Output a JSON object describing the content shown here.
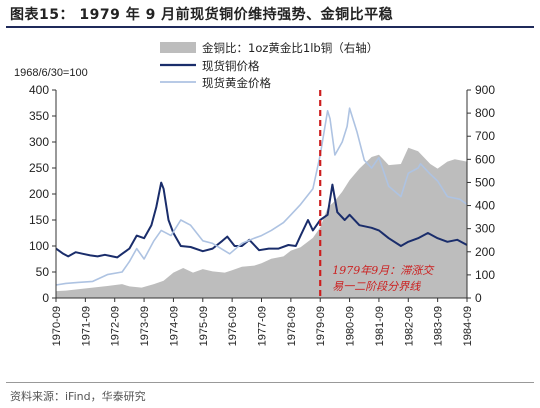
{
  "header": {
    "title": "图表15：  1979 年 9 月前现货铜价维持强势、金铜比平稳"
  },
  "footer": {
    "source": "资料来源：iFind，华泰研究"
  },
  "chart_data": {
    "type": "line",
    "base_label": "1968/6/30=100",
    "x_ticks": [
      "1970-09",
      "1971-09",
      "1972-09",
      "1973-09",
      "1974-09",
      "1975-09",
      "1976-09",
      "1977-09",
      "1978-09",
      "1979-09",
      "1980-09",
      "1981-09",
      "1982-09",
      "1983-09",
      "1984-09"
    ],
    "x_range": [
      "1970-09",
      "1984-09"
    ],
    "left_axis": {
      "range": [
        0,
        400
      ],
      "ticks": [
        0,
        50,
        100,
        150,
        200,
        250,
        300,
        350,
        400
      ]
    },
    "right_axis": {
      "range": [
        0,
        900
      ],
      "ticks": [
        0,
        100,
        200,
        300,
        400,
        500,
        600,
        700,
        800,
        900
      ]
    },
    "grid": false,
    "legend_position": "top",
    "annotation": {
      "x": "1979-09",
      "lines": [
        "1979年9月：滞涨交",
        "易一二阶段分界线"
      ],
      "color": "#cc1f1f"
    },
    "series": [
      {
        "name": "金铜比：1oz黄金比1lb铜（右轴）",
        "axis": "right",
        "style": "area",
        "color": "#bdbdbd",
        "points": [
          [
            "1970-09",
            30
          ],
          [
            "1971-01",
            32
          ],
          [
            "1971-06",
            38
          ],
          [
            "1971-12",
            45
          ],
          [
            "1972-06",
            52
          ],
          [
            "1972-12",
            60
          ],
          [
            "1973-03",
            50
          ],
          [
            "1973-08",
            45
          ],
          [
            "1974-01",
            60
          ],
          [
            "1974-05",
            75
          ],
          [
            "1974-09",
            110
          ],
          [
            "1975-01",
            130
          ],
          [
            "1975-05",
            110
          ],
          [
            "1975-09",
            125
          ],
          [
            "1976-01",
            115
          ],
          [
            "1976-06",
            110
          ],
          [
            "1976-09",
            120
          ],
          [
            "1977-01",
            135
          ],
          [
            "1977-06",
            140
          ],
          [
            "1977-09",
            150
          ],
          [
            "1978-01",
            170
          ],
          [
            "1978-06",
            180
          ],
          [
            "1978-09",
            205
          ],
          [
            "1979-01",
            220
          ],
          [
            "1979-06",
            260
          ],
          [
            "1979-09",
            305
          ],
          [
            "1979-12",
            390
          ],
          [
            "1980-03",
            420
          ],
          [
            "1980-06",
            460
          ],
          [
            "1980-09",
            510
          ],
          [
            "1981-01",
            560
          ],
          [
            "1981-06",
            610
          ],
          [
            "1981-09",
            620
          ],
          [
            "1982-01",
            575
          ],
          [
            "1982-06",
            580
          ],
          [
            "1982-09",
            650
          ],
          [
            "1983-01",
            635
          ],
          [
            "1983-06",
            580
          ],
          [
            "1983-09",
            560
          ],
          [
            "1984-01",
            590
          ],
          [
            "1984-04",
            600
          ],
          [
            "1984-09",
            590
          ]
        ]
      },
      {
        "name": "现货铜价格",
        "axis": "left",
        "style": "line",
        "color": "#1a2d6b",
        "points": [
          [
            "1970-09",
            95
          ],
          [
            "1970-12",
            85
          ],
          [
            "1971-02",
            80
          ],
          [
            "1971-05",
            88
          ],
          [
            "1971-08",
            85
          ],
          [
            "1971-11",
            82
          ],
          [
            "1972-02",
            80
          ],
          [
            "1972-05",
            83
          ],
          [
            "1972-08",
            80
          ],
          [
            "1972-10",
            78
          ],
          [
            "1972-12",
            85
          ],
          [
            "1973-03",
            95
          ],
          [
            "1973-06",
            120
          ],
          [
            "1973-09",
            115
          ],
          [
            "1973-12",
            140
          ],
          [
            "1974-02",
            175
          ],
          [
            "1974-04",
            222
          ],
          [
            "1974-05",
            210
          ],
          [
            "1974-07",
            150
          ],
          [
            "1974-09",
            125
          ],
          [
            "1974-12",
            100
          ],
          [
            "1975-04",
            98
          ],
          [
            "1975-09",
            90
          ],
          [
            "1976-01",
            95
          ],
          [
            "1976-05",
            110
          ],
          [
            "1976-07",
            118
          ],
          [
            "1976-10",
            100
          ],
          [
            "1977-01",
            100
          ],
          [
            "1977-04",
            112
          ],
          [
            "1977-08",
            92
          ],
          [
            "1977-12",
            95
          ],
          [
            "1978-04",
            95
          ],
          [
            "1978-08",
            102
          ],
          [
            "1978-11",
            100
          ],
          [
            "1979-01",
            120
          ],
          [
            "1979-04",
            150
          ],
          [
            "1979-06",
            130
          ],
          [
            "1979-09",
            150
          ],
          [
            "1979-12",
            160
          ],
          [
            "1980-02",
            218
          ],
          [
            "1980-04",
            165
          ],
          [
            "1980-07",
            150
          ],
          [
            "1980-09",
            160
          ],
          [
            "1981-01",
            140
          ],
          [
            "1981-06",
            135
          ],
          [
            "1981-09",
            130
          ],
          [
            "1982-01",
            115
          ],
          [
            "1982-06",
            100
          ],
          [
            "1982-09",
            108
          ],
          [
            "1983-01",
            115
          ],
          [
            "1983-05",
            125
          ],
          [
            "1983-09",
            115
          ],
          [
            "1984-01",
            108
          ],
          [
            "1984-05",
            112
          ],
          [
            "1984-09",
            102
          ]
        ]
      },
      {
        "name": "现货黄金价格",
        "axis": "left",
        "style": "line",
        "color": "#aec3e2",
        "points": [
          [
            "1970-09",
            25
          ],
          [
            "1971-01",
            28
          ],
          [
            "1971-06",
            30
          ],
          [
            "1971-12",
            32
          ],
          [
            "1972-06",
            45
          ],
          [
            "1972-12",
            50
          ],
          [
            "1973-03",
            70
          ],
          [
            "1973-06",
            95
          ],
          [
            "1973-09",
            75
          ],
          [
            "1974-01",
            110
          ],
          [
            "1974-04",
            130
          ],
          [
            "1974-08",
            120
          ],
          [
            "1974-12",
            150
          ],
          [
            "1975-04",
            140
          ],
          [
            "1975-09",
            110
          ],
          [
            "1976-01",
            105
          ],
          [
            "1976-08",
            85
          ],
          [
            "1977-01",
            105
          ],
          [
            "1977-06",
            115
          ],
          [
            "1977-09",
            120
          ],
          [
            "1978-01",
            130
          ],
          [
            "1978-06",
            145
          ],
          [
            "1978-09",
            160
          ],
          [
            "1979-01",
            180
          ],
          [
            "1979-06",
            210
          ],
          [
            "1979-09",
            275
          ],
          [
            "1979-12",
            360
          ],
          [
            "1980-01",
            345
          ],
          [
            "1980-03",
            275
          ],
          [
            "1980-06",
            300
          ],
          [
            "1980-08",
            330
          ],
          [
            "1980-09",
            365
          ],
          [
            "1980-12",
            320
          ],
          [
            "1981-03",
            265
          ],
          [
            "1981-06",
            250
          ],
          [
            "1981-09",
            270
          ],
          [
            "1982-01",
            215
          ],
          [
            "1982-06",
            195
          ],
          [
            "1982-09",
            240
          ],
          [
            "1983-01",
            250
          ],
          [
            "1983-02",
            258
          ],
          [
            "1983-06",
            238
          ],
          [
            "1983-09",
            225
          ],
          [
            "1984-01",
            195
          ],
          [
            "1984-06",
            190
          ],
          [
            "1984-09",
            180
          ]
        ]
      }
    ]
  }
}
